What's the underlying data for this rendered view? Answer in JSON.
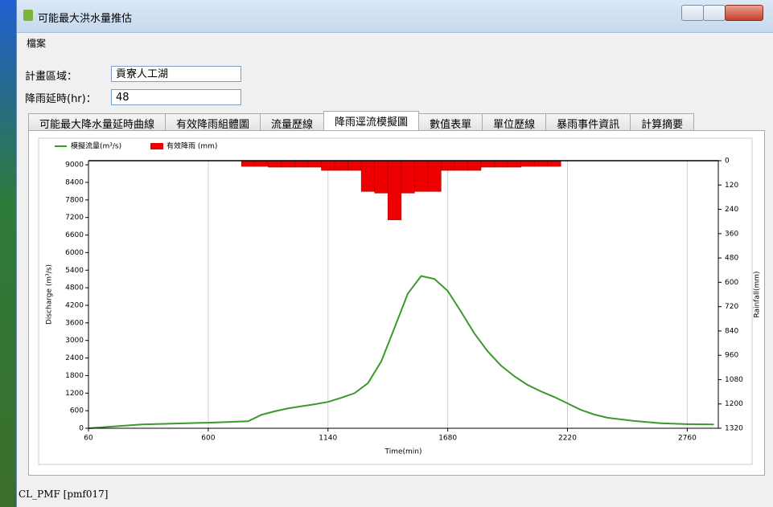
{
  "window": {
    "title": "可能最大洪水量推估"
  },
  "menu": [
    "檔案"
  ],
  "form": {
    "area_label": "計畫區域：",
    "area_value": "貢寮人工湖",
    "duration_label": "降雨延時(hr)：",
    "duration_value": "48"
  },
  "tabs": [
    "可能最大降水量延時曲線",
    "有效降雨組體圖",
    "流量歷線",
    "降雨逕流模擬圖",
    "數值表單",
    "單位歷線",
    "暴雨事件資訊",
    "計算摘要"
  ],
  "active_tab": 3,
  "chart_data": {
    "type": "combo",
    "xlabel": "Time(min)",
    "ylabel": "Discharge (m³/s)",
    "y2label": "Rainfall(mm)",
    "xlim": [
      60,
      2900
    ],
    "xticks": [
      60,
      600,
      1140,
      1680,
      2220,
      2760
    ],
    "ylim": [
      0,
      9140
    ],
    "yticks": [
      0,
      600,
      1200,
      1800,
      2400,
      3000,
      3600,
      4200,
      4800,
      5400,
      6000,
      6600,
      7200,
      7800,
      8400,
      9000
    ],
    "y2lim": [
      0,
      1320
    ],
    "y2ticks": [
      0,
      120,
      240,
      360,
      480,
      600,
      720,
      840,
      960,
      1080,
      1200,
      1320
    ],
    "y2_inverted": true,
    "grid": "x",
    "series": [
      {
        "name": "模擬流量(m³/s)",
        "type": "line",
        "color": "#3a9a2a",
        "x": [
          60,
          300,
          600,
          780,
          840,
          900,
          960,
          1020,
          1080,
          1140,
          1200,
          1260,
          1320,
          1380,
          1440,
          1500,
          1560,
          1620,
          1680,
          1740,
          1800,
          1860,
          1920,
          1980,
          2040,
          2100,
          2160,
          2220,
          2280,
          2340,
          2400,
          2520,
          2640,
          2760,
          2880
        ],
        "values": [
          0,
          130,
          190,
          240,
          460,
          580,
          680,
          750,
          820,
          900,
          1040,
          1200,
          1540,
          2280,
          3430,
          4600,
          5200,
          5100,
          4690,
          3980,
          3240,
          2630,
          2140,
          1780,
          1480,
          1260,
          1070,
          850,
          630,
          470,
          360,
          250,
          170,
          140,
          130
        ]
      },
      {
        "name": "有效降雨 (mm)",
        "type": "bar",
        "axis": "y2",
        "color": "#ee0000",
        "bins": [
          750,
          810,
          870,
          930,
          990,
          1050,
          1110,
          1170,
          1230,
          1290,
          1350,
          1410,
          1470,
          1530,
          1590,
          1650,
          1710,
          1770,
          1830,
          1890,
          1950,
          2010,
          2070,
          2130,
          2190
        ],
        "values": [
          28,
          28,
          32,
          32,
          32,
          32,
          48,
          48,
          48,
          152,
          160,
          292,
          160,
          152,
          152,
          48,
          48,
          48,
          32,
          32,
          32,
          28,
          28,
          28
        ]
      }
    ]
  },
  "status": "CL_PMF [pmf017]"
}
